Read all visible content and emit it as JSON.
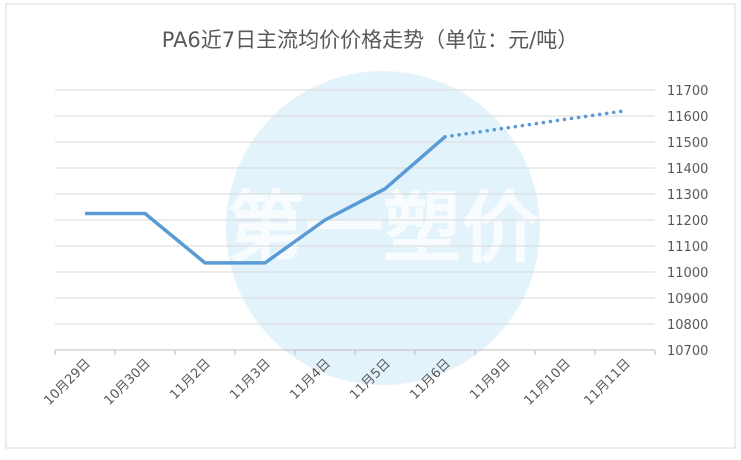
{
  "chart_data": {
    "type": "line",
    "title": "PA6近7日主流均价价格走势（单位：元/吨）",
    "watermark": "第一塑价",
    "categories": [
      "10月29日",
      "10月30日",
      "11月2日",
      "11月3日",
      "11月4日",
      "11月5日",
      "11月6日",
      "11月9日",
      "11月10日",
      "11月11日"
    ],
    "series": [
      {
        "color": "#5b9bd5",
        "dash": "solid",
        "values": [
          11225,
          11225,
          11035,
          11035,
          11200,
          11320,
          11520,
          null,
          null,
          null
        ]
      },
      {
        "color": "#5b9bd5",
        "dash": "dotted",
        "values": [
          null,
          null,
          null,
          null,
          null,
          null,
          11520,
          11553,
          11587,
          11620
        ]
      }
    ],
    "ylim": [
      10700,
      11700
    ],
    "yticks": [
      10700,
      10800,
      10900,
      11000,
      11100,
      11200,
      11300,
      11400,
      11500,
      11600,
      11700
    ],
    "grid": true
  }
}
